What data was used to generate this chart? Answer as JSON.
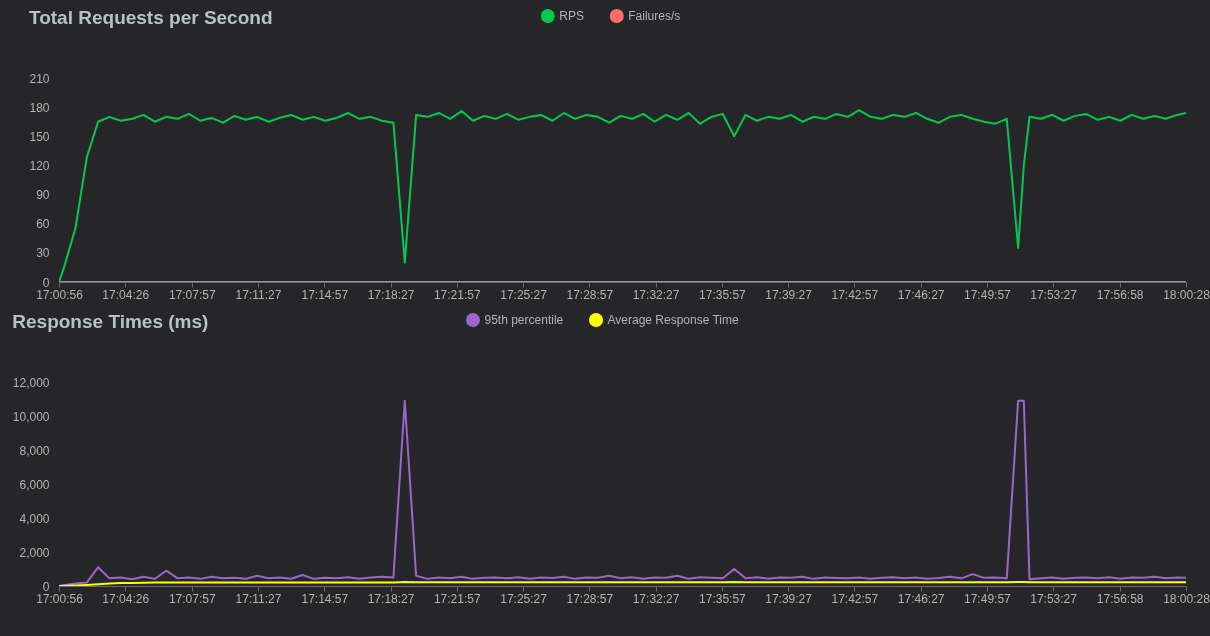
{
  "chart_data": [
    {
      "type": "line",
      "title": "Total Requests per Second",
      "legend": "top",
      "grid": false,
      "x": [
        17.0156,
        17.02,
        17.03,
        17.04,
        17.05,
        17.06,
        17.07,
        17.08,
        17.09,
        17.1,
        17.11,
        17.12,
        17.13,
        17.14,
        17.15,
        17.16,
        17.17,
        17.18,
        17.19,
        17.2,
        17.21,
        17.22,
        17.23,
        17.24,
        17.25,
        17.26,
        17.27,
        17.28,
        17.29,
        17.3,
        17.31,
        17.32,
        17.33,
        17.34,
        17.35,
        17.36,
        17.37,
        17.38,
        17.39,
        17.4,
        17.41,
        17.42,
        17.43,
        17.44,
        17.45,
        17.46,
        17.47,
        17.48,
        17.49,
        17.5,
        17.51,
        17.52,
        17.53,
        17.54,
        17.55,
        17.56,
        17.57,
        17.58,
        17.59,
        17.6,
        17.61,
        17.62,
        17.63,
        17.64,
        17.65,
        17.66,
        17.67,
        17.68,
        17.69,
        17.7,
        17.71,
        17.72,
        17.73,
        17.74,
        17.75,
        17.76,
        17.77,
        17.78,
        17.79,
        17.8,
        17.81,
        17.82,
        17.83,
        17.84,
        17.85,
        17.86,
        17.865,
        17.87,
        17.88,
        17.89,
        17.9,
        17.91,
        17.92,
        17.93,
        17.94,
        17.95,
        17.96,
        17.97,
        17.98,
        17.99,
        18.0,
        18.0078
      ],
      "xlim": [
        17.0156,
        18.0078
      ],
      "xticks": [
        {
          "value": 17.0156,
          "label": "17:00:56"
        },
        {
          "value": 17.0739,
          "label": "17:04:26"
        },
        {
          "value": 17.1325,
          "label": "17:07:57"
        },
        {
          "value": 17.1908,
          "label": "17:11:27"
        },
        {
          "value": 17.2492,
          "label": "17:14:57"
        },
        {
          "value": 17.3075,
          "label": "17:18:27"
        },
        {
          "value": 17.3658,
          "label": "17:21:57"
        },
        {
          "value": 17.4242,
          "label": "17:25:27"
        },
        {
          "value": 17.4825,
          "label": "17:28:57"
        },
        {
          "value": 17.5408,
          "label": "17:32:27"
        },
        {
          "value": 17.5992,
          "label": "17:35:57"
        },
        {
          "value": 17.6575,
          "label": "17:39:27"
        },
        {
          "value": 17.7158,
          "label": "17:42:57"
        },
        {
          "value": 17.7742,
          "label": "17:46:27"
        },
        {
          "value": 17.8325,
          "label": "17:49:57"
        },
        {
          "value": 17.8908,
          "label": "17:53:27"
        },
        {
          "value": 17.9494,
          "label": "17:56:58"
        },
        {
          "value": 18.0078,
          "label": "18:00:28"
        }
      ],
      "ylim": [
        0,
        210
      ],
      "yticks": [
        0,
        30,
        60,
        90,
        120,
        150,
        180,
        210
      ],
      "series": [
        {
          "name": "RPS",
          "color": "#00c853",
          "values": [
            0,
            15,
            55,
            128,
            165,
            170,
            166,
            168,
            172,
            165,
            170,
            168,
            173,
            166,
            169,
            164,
            171,
            167,
            170,
            165,
            169,
            172,
            167,
            170,
            166,
            169,
            174,
            168,
            170,
            166,
            164,
            20,
            172,
            170,
            174,
            168,
            176,
            166,
            171,
            168,
            173,
            167,
            170,
            172,
            166,
            174,
            168,
            172,
            170,
            164,
            171,
            168,
            173,
            165,
            172,
            167,
            174,
            163,
            170,
            173,
            150,
            172,
            166,
            170,
            168,
            172,
            165,
            170,
            168,
            173,
            170,
            177,
            170,
            168,
            172,
            170,
            174,
            168,
            164,
            170,
            172,
            168,
            165,
            163,
            168,
            35,
            120,
            170,
            168,
            172,
            166,
            171,
            173,
            167,
            170,
            166,
            172,
            168,
            171,
            168,
            172,
            174
          ]
        },
        {
          "name": "Failures/s",
          "color": "#ff6b6b",
          "values": [
            0,
            0,
            0,
            0,
            0,
            0,
            0,
            0,
            0,
            0,
            0,
            0,
            0,
            0,
            0,
            0,
            0,
            0,
            0,
            0,
            0,
            0,
            0,
            0,
            0,
            0,
            0,
            0,
            0,
            0,
            0,
            0,
            0,
            0,
            0,
            0,
            0,
            0,
            0,
            0,
            0,
            0,
            0,
            0,
            0,
            0,
            0,
            0,
            0,
            0,
            0,
            0,
            0,
            0,
            0,
            0,
            0,
            0,
            0,
            0,
            0,
            0,
            0,
            0,
            0,
            0,
            0,
            0,
            0,
            0,
            0,
            0,
            0,
            0,
            0,
            0,
            0,
            0,
            0,
            0,
            0,
            0,
            0,
            0,
            0,
            0,
            0,
            0,
            0,
            0,
            0,
            0,
            0,
            0,
            0,
            0,
            0,
            0,
            0,
            0,
            0,
            0
          ]
        }
      ]
    },
    {
      "type": "line",
      "title": "Response Times (ms)",
      "legend": "top",
      "grid": false,
      "x": [
        17.0156,
        17.02,
        17.03,
        17.04,
        17.05,
        17.06,
        17.07,
        17.08,
        17.09,
        17.1,
        17.11,
        17.12,
        17.13,
        17.14,
        17.15,
        17.16,
        17.17,
        17.18,
        17.19,
        17.2,
        17.21,
        17.22,
        17.23,
        17.24,
        17.25,
        17.26,
        17.27,
        17.28,
        17.29,
        17.3,
        17.31,
        17.32,
        17.33,
        17.34,
        17.35,
        17.36,
        17.37,
        17.38,
        17.39,
        17.4,
        17.41,
        17.42,
        17.43,
        17.44,
        17.45,
        17.46,
        17.47,
        17.48,
        17.49,
        17.5,
        17.51,
        17.52,
        17.53,
        17.54,
        17.55,
        17.56,
        17.57,
        17.58,
        17.59,
        17.6,
        17.61,
        17.62,
        17.63,
        17.64,
        17.65,
        17.66,
        17.67,
        17.68,
        17.69,
        17.7,
        17.71,
        17.72,
        17.73,
        17.74,
        17.75,
        17.76,
        17.77,
        17.78,
        17.79,
        17.8,
        17.81,
        17.82,
        17.83,
        17.84,
        17.85,
        17.86,
        17.865,
        17.87,
        17.88,
        17.89,
        17.9,
        17.91,
        17.92,
        17.93,
        17.94,
        17.95,
        17.96,
        17.97,
        17.98,
        17.99,
        18.0,
        18.0078
      ],
      "xlim": [
        17.0156,
        18.0078
      ],
      "xticks": [
        {
          "value": 17.0156,
          "label": "17:00:56"
        },
        {
          "value": 17.0739,
          "label": "17:04:26"
        },
        {
          "value": 17.1325,
          "label": "17:07:57"
        },
        {
          "value": 17.1908,
          "label": "17:11:27"
        },
        {
          "value": 17.2492,
          "label": "17:14:57"
        },
        {
          "value": 17.3075,
          "label": "17:18:27"
        },
        {
          "value": 17.3658,
          "label": "17:21:57"
        },
        {
          "value": 17.4242,
          "label": "17:25:27"
        },
        {
          "value": 17.4825,
          "label": "17:28:57"
        },
        {
          "value": 17.5408,
          "label": "17:32:27"
        },
        {
          "value": 17.5992,
          "label": "17:35:57"
        },
        {
          "value": 17.6575,
          "label": "17:39:27"
        },
        {
          "value": 17.7158,
          "label": "17:42:57"
        },
        {
          "value": 17.7742,
          "label": "17:46:27"
        },
        {
          "value": 17.8325,
          "label": "17:49:57"
        },
        {
          "value": 17.8908,
          "label": "17:53:27"
        },
        {
          "value": 17.9494,
          "label": "17:56:58"
        },
        {
          "value": 18.0078,
          "label": "18:00:28"
        }
      ],
      "ylim": [
        0,
        12000
      ],
      "yticks": [
        0,
        {
          "value": 2000,
          "label": "2,000"
        },
        {
          "value": 4000,
          "label": "4,000"
        },
        {
          "value": 6000,
          "label": "6,000"
        },
        {
          "value": 8000,
          "label": "8,000"
        },
        {
          "value": 10000,
          "label": "10,000"
        },
        {
          "value": 12000,
          "label": "12,000"
        }
      ],
      "series": [
        {
          "name": "95th percentile",
          "color": "#9966cc",
          "values": [
            0,
            50,
            150,
            200,
            1100,
            450,
            500,
            400,
            550,
            420,
            900,
            450,
            500,
            420,
            550,
            450,
            480,
            420,
            600,
            450,
            500,
            430,
            650,
            420,
            480,
            450,
            520,
            430,
            500,
            550,
            500,
            10900,
            600,
            420,
            500,
            450,
            550,
            420,
            480,
            500,
            450,
            520,
            430,
            500,
            470,
            550,
            420,
            500,
            480,
            600,
            450,
            520,
            430,
            500,
            480,
            600,
            420,
            520,
            480,
            450,
            1000,
            450,
            520,
            430,
            500,
            480,
            550,
            420,
            500,
            470,
            450,
            500,
            420,
            480,
            520,
            450,
            500,
            430,
            470,
            550,
            450,
            700,
            480,
            500,
            450,
            10900,
            10900,
            400,
            450,
            500,
            420,
            480,
            500,
            450,
            520,
            430,
            500,
            480,
            550,
            450,
            500,
            480
          ]
        },
        {
          "name": "Average Response Time",
          "color": "#ffff00",
          "values": [
            0,
            10,
            30,
            60,
            100,
            140,
            170,
            180,
            190,
            200,
            200,
            200,
            200,
            200,
            200,
            200,
            210,
            210,
            210,
            210,
            210,
            210,
            210,
            210,
            210,
            210,
            210,
            210,
            210,
            210,
            210,
            230,
            220,
            220,
            220,
            220,
            220,
            220,
            220,
            220,
            220,
            220,
            220,
            220,
            220,
            220,
            220,
            220,
            220,
            220,
            220,
            220,
            220,
            220,
            220,
            220,
            220,
            220,
            220,
            220,
            230,
            220,
            220,
            220,
            220,
            220,
            220,
            220,
            220,
            220,
            220,
            220,
            220,
            220,
            220,
            220,
            220,
            220,
            220,
            220,
            220,
            220,
            220,
            220,
            220,
            240,
            240,
            225,
            220,
            220,
            220,
            220,
            220,
            220,
            220,
            220,
            220,
            220,
            220,
            220,
            220,
            220
          ]
        }
      ]
    }
  ]
}
